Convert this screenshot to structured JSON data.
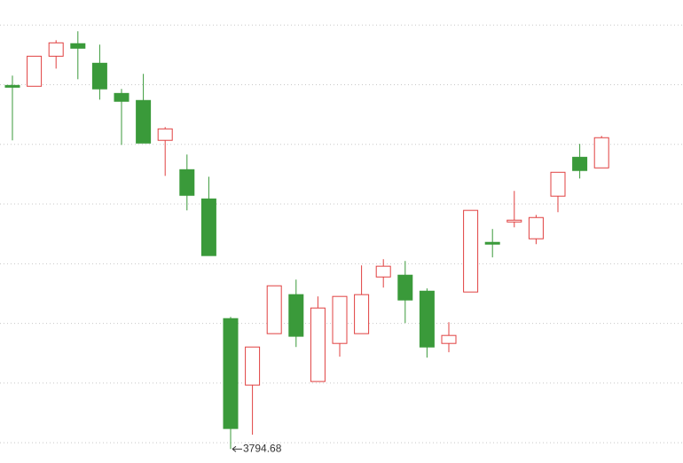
{
  "chart_data": {
    "type": "candlestick",
    "open": [
      4099.4,
      4098.7,
      4123.9,
      4134.4,
      4118,
      4092.7,
      4086.8,
      4053.4,
      4028.8,
      4004.3,
      3904,
      3848.3,
      3891.4,
      3924.1,
      3851.3,
      3883.2,
      3891.4,
      3938.9,
      3940.4,
      3927,
      3883.2,
      3926.3,
      3967.9,
      3985,
      3970.9,
      4006.6,
      4039.2,
      4030.3
    ],
    "high": [
      4107.6,
      4123.9,
      4137.3,
      4144.8,
      4133.6,
      4096.5,
      4109.1,
      4064.5,
      4041.5,
      4022.9,
      3905.5,
      3880.2,
      3931.5,
      3936.7,
      3922.6,
      3922.6,
      3948.6,
      3953.8,
      3952.3,
      3929.3,
      3901,
      3994.7,
      3979.1,
      4011,
      3990.9,
      4026.6,
      4050.4,
      4057.1
    ],
    "low": [
      4053.4,
      4098.7,
      4113.5,
      4104.6,
      4087.5,
      4049.6,
      4051.1,
      4023.6,
      3994.7,
      3956.8,
      3794.68,
      3806.7,
      3891.4,
      3880.2,
      3851.3,
      3872.1,
      3891.4,
      3930,
      3900.3,
      3871.3,
      3875.8,
      3926.3,
      3955.3,
      3980.5,
      3966.4,
      3993.2,
      4021.4,
      4030.3
    ],
    "close": [
      4097.9,
      4123.9,
      4135.1,
      4130.6,
      4096.5,
      4086.1,
      4051.1,
      4063,
      4007.3,
      3956.8,
      3811.9,
      3880.2,
      3931.5,
      3889.2,
      3912.9,
      3922.6,
      3924.1,
      3947.9,
      3919.6,
      3880.2,
      3889.9,
      3994.7,
      3966.4,
      3986.5,
      3988.7,
      4026.6,
      4028.1,
      4055.6
    ],
    "up_color": "#e04040",
    "down_color": "#3a9a3a",
    "ylim": [
      3783,
      4171
    ],
    "yticks": [
      3800,
      3850,
      3900,
      3950,
      4000,
      4050,
      4100,
      4150
    ],
    "grid": true
  }
}
